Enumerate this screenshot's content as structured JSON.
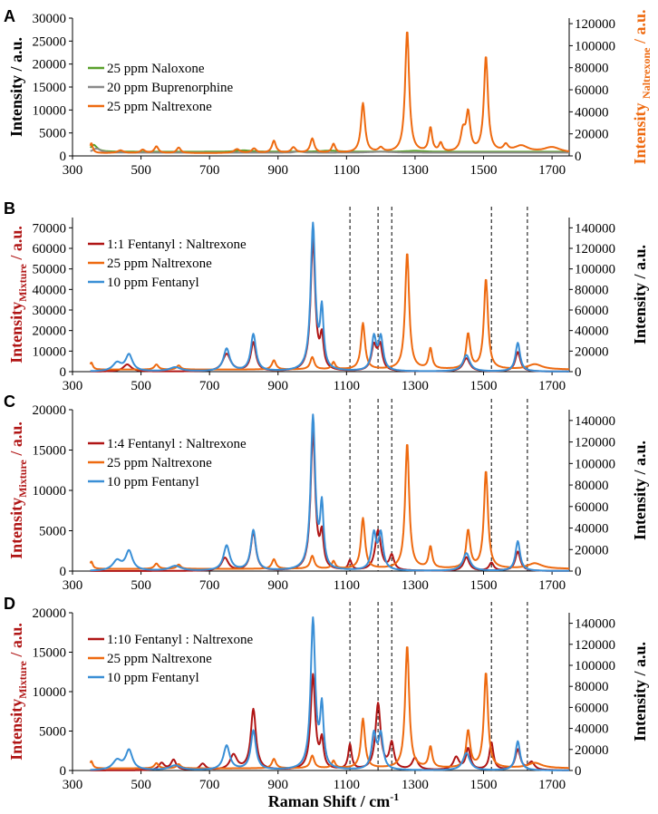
{
  "xaxis_label": "Raman Shift / cm",
  "xaxis_unit_exp": "-1",
  "x_ticks": [
    300,
    500,
    700,
    900,
    1100,
    1300,
    1500,
    1700
  ],
  "dashed_lines_x": [
    1110,
    1192,
    1232,
    1523,
    1628
  ],
  "colors": {
    "naloxone": "#5aa02c",
    "buprenorphine": "#8a8a8a",
    "naltrexone": "#ee6a10",
    "fentanyl": "#3a8fd6",
    "mixture": "#b01515"
  },
  "chart_data": [
    {
      "type": "line",
      "panel": "A",
      "xlim": [
        300,
        1750
      ],
      "left_axis": {
        "label": "Intensity / a.u.",
        "ylim": [
          0,
          30000
        ],
        "ticks": [
          0,
          5000,
          10000,
          15000,
          20000,
          25000,
          30000
        ]
      },
      "right_axis": {
        "label_pre": "Intensity ",
        "label_sub": "Naltrexone",
        "label_post": " / a.u.",
        "ylim": [
          0,
          125000
        ],
        "ticks": [
          0,
          20000,
          40000,
          60000,
          80000,
          100000,
          120000
        ]
      },
      "legend": [
        "25 ppm Naloxone",
        "20 ppm Buprenorphine",
        "25 ppm Naltrexone"
      ],
      "series": [
        {
          "name": "25 ppm Naloxone",
          "key": "naloxone",
          "axis": "left",
          "baseline": 900,
          "peaks": [
            [
              362,
              1500,
              12
            ],
            [
              800,
              300,
              25
            ],
            [
              1050,
              250,
              30
            ],
            [
              1300,
              200,
              30
            ]
          ]
        },
        {
          "name": "20 ppm Buprenorphine",
          "key": "buprenorphine",
          "axis": "left",
          "baseline": 700,
          "peaks": [
            [
              370,
              900,
              14
            ],
            [
              960,
              350,
              10
            ],
            [
              1200,
              200,
              40
            ]
          ]
        },
        {
          "name": "25 ppm Naltrexone",
          "key": "naltrexone",
          "axis": "right",
          "baseline": 2500,
          "peaks": [
            [
              355,
              9000,
              5
            ],
            [
              440,
              2500,
              10
            ],
            [
              505,
              3000,
              8
            ],
            [
              545,
              6000,
              7
            ],
            [
              610,
              5000,
              7
            ],
            [
              780,
              3500,
              10
            ],
            [
              830,
              4000,
              8
            ],
            [
              888,
              11000,
              7
            ],
            [
              945,
              5000,
              8
            ],
            [
              1000,
              13000,
              7
            ],
            [
              1062,
              8000,
              6
            ],
            [
              1148,
              45000,
              7
            ],
            [
              1200,
              4000,
              8
            ],
            [
              1277,
              111000,
              7
            ],
            [
              1345,
              22000,
              6
            ],
            [
              1375,
              8000,
              6
            ],
            [
              1440,
              18000,
              8
            ],
            [
              1455,
              34000,
              7
            ],
            [
              1507,
              87000,
              7
            ],
            [
              1565,
              6000,
              8
            ],
            [
              1610,
              6000,
              25
            ],
            [
              1700,
              5000,
              30
            ]
          ]
        }
      ]
    },
    {
      "type": "line",
      "panel": "B",
      "xlim": [
        300,
        1750
      ],
      "left_axis": {
        "label_pre": "Intensity",
        "label_sub": "Mixture",
        "label_post": " / a.u.",
        "ylim": [
          0,
          75000
        ],
        "ticks": [
          0,
          10000,
          20000,
          30000,
          40000,
          50000,
          60000,
          70000
        ]
      },
      "right_axis": {
        "label": "Intensity / a.u.",
        "ylim": [
          0,
          150000
        ],
        "ticks": [
          0,
          20000,
          40000,
          60000,
          80000,
          100000,
          120000,
          140000
        ]
      },
      "legend": [
        "1:1 Fentanyl : Naltrexone",
        "25 ppm Naltrexone",
        "10 ppm Fentanyl"
      ],
      "series": [
        {
          "name": "1:1 Fentanyl : Naltrexone",
          "key": "mixture",
          "axis": "left",
          "baseline": 0,
          "peaks": [
            [
              460,
              3500,
              14
            ],
            [
              750,
              8500,
              14
            ],
            [
              828,
              14000,
              9
            ],
            [
              1002,
              64000,
              8
            ],
            [
              1028,
              15000,
              6
            ],
            [
              1180,
              12000,
              9
            ],
            [
              1198,
              12000,
              8
            ],
            [
              1450,
              6500,
              12
            ],
            [
              1600,
              9500,
              9
            ]
          ]
        },
        {
          "name": "25 ppm Naltrexone",
          "key": "naltrexone",
          "axis": "right",
          "baseline": 2000,
          "peaks": [
            [
              355,
              7000,
              5
            ],
            [
              545,
              5000,
              7
            ],
            [
              610,
              4000,
              7
            ],
            [
              888,
              9000,
              7
            ],
            [
              1000,
              12000,
              7
            ],
            [
              1062,
              7000,
              6
            ],
            [
              1148,
              45000,
              7
            ],
            [
              1277,
              114000,
              7
            ],
            [
              1345,
              20000,
              6
            ],
            [
              1455,
              34000,
              7
            ],
            [
              1507,
              88000,
              7
            ],
            [
              1650,
              5000,
              25
            ]
          ]
        },
        {
          "name": "10 ppm Fentanyl",
          "key": "fentanyl",
          "axis": "left",
          "baseline": 0,
          "peaks": [
            [
              430,
              4000,
              15
            ],
            [
              465,
              8000,
              12
            ],
            [
              600,
              2000,
              20
            ],
            [
              750,
              11000,
              11
            ],
            [
              828,
              18000,
              9
            ],
            [
              1002,
              71000,
              8
            ],
            [
              1028,
              28000,
              6
            ],
            [
              1180,
              16000,
              8
            ],
            [
              1200,
              16000,
              8
            ],
            [
              1450,
              8000,
              12
            ],
            [
              1600,
              14000,
              8
            ]
          ]
        }
      ]
    },
    {
      "type": "line",
      "panel": "C",
      "xlim": [
        300,
        1750
      ],
      "left_axis": {
        "label_pre": "Intensity",
        "label_sub": "Mixture",
        "label_post": " / a.u.",
        "ylim": [
          0,
          20000
        ],
        "ticks": [
          0,
          5000,
          10000,
          15000,
          20000
        ]
      },
      "right_axis": {
        "label": "Intensity / a.u.",
        "ylim": [
          0,
          150000
        ],
        "ticks": [
          0,
          20000,
          40000,
          60000,
          80000,
          100000,
          120000,
          140000
        ]
      },
      "legend": [
        "1:4 Fentanyl : Naltrexone",
        "25 ppm Naltrexone",
        "10 ppm Fentanyl"
      ],
      "series": [
        {
          "name": "1:4 Fentanyl : Naltrexone",
          "key": "mixture",
          "axis": "left",
          "baseline": 0,
          "peaks": [
            [
              745,
              1600,
              12
            ],
            [
              828,
              4800,
              9
            ],
            [
              1002,
              17300,
              8
            ],
            [
              1028,
              4000,
              6
            ],
            [
              1110,
              1200,
              6
            ],
            [
              1192,
              5000,
              10
            ],
            [
              1232,
              1800,
              8
            ],
            [
              1450,
              1700,
              10
            ],
            [
              1523,
              1000,
              8
            ],
            [
              1600,
              2400,
              9
            ]
          ]
        },
        {
          "name": "25 ppm Naltrexone",
          "key": "naltrexone",
          "axis": "right",
          "baseline": 2000,
          "peaks": [
            [
              355,
              7000,
              5
            ],
            [
              545,
              5000,
              7
            ],
            [
              610,
              4000,
              7
            ],
            [
              888,
              9000,
              7
            ],
            [
              1000,
              12000,
              7
            ],
            [
              1062,
              7000,
              6
            ],
            [
              1148,
              47000,
              7
            ],
            [
              1277,
              117000,
              7
            ],
            [
              1345,
              20000,
              6
            ],
            [
              1455,
              35000,
              7
            ],
            [
              1507,
              91000,
              7
            ],
            [
              1650,
              5000,
              25
            ]
          ]
        },
        {
          "name": "10 ppm Fentanyl",
          "key": "fentanyl",
          "axis": "left",
          "baseline": 0,
          "peaks": [
            [
              430,
              1200,
              15
            ],
            [
              465,
              2400,
              12
            ],
            [
              600,
              600,
              20
            ],
            [
              750,
              3100,
              11
            ],
            [
              828,
              5000,
              9
            ],
            [
              1002,
              19000,
              8
            ],
            [
              1028,
              7500,
              6
            ],
            [
              1180,
              4400,
              8
            ],
            [
              1200,
              4400,
              8
            ],
            [
              1450,
              2200,
              12
            ],
            [
              1600,
              3700,
              8
            ]
          ]
        }
      ]
    },
    {
      "type": "line",
      "panel": "D",
      "xlim": [
        300,
        1750
      ],
      "left_axis": {
        "label_pre": "Intensity",
        "label_sub": "Mixture",
        "label_post": " / a.u.",
        "ylim": [
          0,
          20000
        ],
        "ticks": [
          0,
          5000,
          10000,
          15000,
          20000
        ]
      },
      "right_axis": {
        "label": "Intensity / a.u.",
        "ylim": [
          0,
          150000
        ],
        "ticks": [
          0,
          20000,
          40000,
          60000,
          80000,
          100000,
          120000,
          140000
        ]
      },
      "legend": [
        "1:10 Fentanyl : Naltrexone",
        "25 ppm Naltrexone",
        "10 ppm Fentanyl"
      ],
      "series": [
        {
          "name": "1:10 Fentanyl : Naltrexone",
          "key": "mixture",
          "axis": "left",
          "baseline": 0,
          "peaks": [
            [
              560,
              900,
              10
            ],
            [
              595,
              1300,
              9
            ],
            [
              680,
              800,
              10
            ],
            [
              770,
              1900,
              12
            ],
            [
              828,
              7700,
              9
            ],
            [
              1002,
              12000,
              8
            ],
            [
              1028,
              3500,
              6
            ],
            [
              1110,
              3200,
              6
            ],
            [
              1192,
              8400,
              9
            ],
            [
              1232,
              3300,
              8
            ],
            [
              1300,
              1500,
              10
            ],
            [
              1420,
              1600,
              10
            ],
            [
              1455,
              2700,
              8
            ],
            [
              1523,
              3500,
              7
            ],
            [
              1600,
              2600,
              9
            ],
            [
              1640,
              1000,
              10
            ]
          ]
        },
        {
          "name": "25 ppm Naltrexone",
          "key": "naltrexone",
          "axis": "right",
          "baseline": 2000,
          "peaks": [
            [
              355,
              7000,
              5
            ],
            [
              545,
              5000,
              7
            ],
            [
              610,
              4000,
              7
            ],
            [
              888,
              9000,
              7
            ],
            [
              1000,
              12000,
              7
            ],
            [
              1062,
              7000,
              6
            ],
            [
              1148,
              47000,
              7
            ],
            [
              1277,
              117000,
              7
            ],
            [
              1345,
              20000,
              6
            ],
            [
              1455,
              35000,
              7
            ],
            [
              1507,
              91000,
              7
            ],
            [
              1650,
              5000,
              25
            ]
          ]
        },
        {
          "name": "10 ppm Fentanyl",
          "key": "fentanyl",
          "axis": "left",
          "baseline": 0,
          "peaks": [
            [
              430,
              1200,
              15
            ],
            [
              465,
              2500,
              12
            ],
            [
              600,
              600,
              20
            ],
            [
              750,
              3100,
              11
            ],
            [
              828,
              5000,
              9
            ],
            [
              1002,
              19000,
              8
            ],
            [
              1028,
              7500,
              6
            ],
            [
              1180,
              4400,
              8
            ],
            [
              1200,
              4400,
              8
            ],
            [
              1450,
              2200,
              12
            ],
            [
              1600,
              3700,
              8
            ]
          ]
        }
      ]
    }
  ]
}
